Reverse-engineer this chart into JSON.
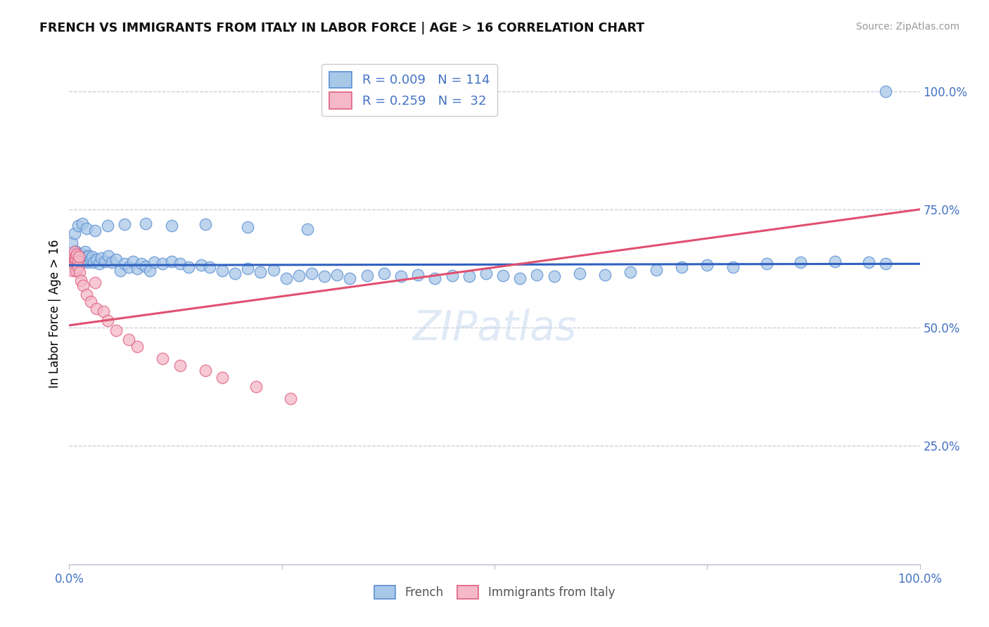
{
  "title": "FRENCH VS IMMIGRANTS FROM ITALY IN LABOR FORCE | AGE > 16 CORRELATION CHART",
  "source": "Source: ZipAtlas.com",
  "ylabel": "In Labor Force | Age > 16",
  "french_color": "#a8c8e8",
  "italy_color": "#f4b8c8",
  "french_edge_color": "#5b8fd4",
  "italy_edge_color": "#e06080",
  "french_line_color": "#3060c0",
  "italy_line_color": "#e05070",
  "watermark": "ZIPatlas",
  "blue_R": 0.009,
  "blue_N": 114,
  "pink_R": 0.259,
  "pink_N": 32,
  "blue_intercept": 0.632,
  "blue_slope": 0.003,
  "pink_intercept": 0.505,
  "pink_slope": 0.245,
  "xlim": [
    0.0,
    1.0
  ],
  "ylim": [
    0.0,
    1.06
  ],
  "blue_x": [
    0.002,
    0.003,
    0.004,
    0.004,
    0.005,
    0.005,
    0.005,
    0.006,
    0.006,
    0.006,
    0.007,
    0.007,
    0.007,
    0.007,
    0.008,
    0.008,
    0.008,
    0.009,
    0.009,
    0.009,
    0.01,
    0.01,
    0.01,
    0.011,
    0.011,
    0.012,
    0.012,
    0.013,
    0.013,
    0.014,
    0.015,
    0.015,
    0.016,
    0.017,
    0.018,
    0.019,
    0.02,
    0.021,
    0.022,
    0.023,
    0.025,
    0.027,
    0.029,
    0.032,
    0.035,
    0.038,
    0.042,
    0.046,
    0.05,
    0.055,
    0.06,
    0.065,
    0.07,
    0.075,
    0.08,
    0.085,
    0.09,
    0.095,
    0.1,
    0.11,
    0.12,
    0.13,
    0.14,
    0.155,
    0.165,
    0.18,
    0.195,
    0.21,
    0.225,
    0.24,
    0.255,
    0.27,
    0.285,
    0.3,
    0.315,
    0.33,
    0.35,
    0.37,
    0.39,
    0.41,
    0.43,
    0.45,
    0.47,
    0.49,
    0.51,
    0.53,
    0.55,
    0.57,
    0.6,
    0.63,
    0.66,
    0.69,
    0.72,
    0.75,
    0.78,
    0.82,
    0.86,
    0.9,
    0.94,
    0.96,
    0.003,
    0.006,
    0.01,
    0.015,
    0.02,
    0.03,
    0.045,
    0.065,
    0.09,
    0.12,
    0.16,
    0.21,
    0.28,
    0.96
  ],
  "blue_y": [
    0.64,
    0.645,
    0.65,
    0.635,
    0.648,
    0.655,
    0.638,
    0.642,
    0.65,
    0.658,
    0.644,
    0.651,
    0.638,
    0.662,
    0.645,
    0.655,
    0.64,
    0.648,
    0.656,
    0.635,
    0.65,
    0.642,
    0.638,
    0.652,
    0.645,
    0.648,
    0.638,
    0.645,
    0.655,
    0.64,
    0.65,
    0.642,
    0.655,
    0.648,
    0.64,
    0.66,
    0.65,
    0.642,
    0.638,
    0.652,
    0.645,
    0.65,
    0.638,
    0.645,
    0.635,
    0.648,
    0.64,
    0.652,
    0.638,
    0.645,
    0.62,
    0.635,
    0.628,
    0.64,
    0.625,
    0.635,
    0.63,
    0.62,
    0.638,
    0.635,
    0.64,
    0.635,
    0.628,
    0.632,
    0.628,
    0.62,
    0.615,
    0.625,
    0.618,
    0.622,
    0.605,
    0.61,
    0.615,
    0.608,
    0.612,
    0.605,
    0.61,
    0.615,
    0.608,
    0.612,
    0.605,
    0.61,
    0.608,
    0.615,
    0.61,
    0.605,
    0.612,
    0.608,
    0.615,
    0.612,
    0.618,
    0.622,
    0.628,
    0.632,
    0.628,
    0.635,
    0.638,
    0.64,
    0.638,
    0.635,
    0.68,
    0.7,
    0.715,
    0.72,
    0.71,
    0.705,
    0.715,
    0.718,
    0.72,
    0.715,
    0.718,
    0.712,
    0.708,
    1.0
  ],
  "pink_x": [
    0.002,
    0.003,
    0.004,
    0.005,
    0.006,
    0.006,
    0.007,
    0.007,
    0.008,
    0.008,
    0.009,
    0.01,
    0.01,
    0.011,
    0.012,
    0.014,
    0.016,
    0.02,
    0.025,
    0.032,
    0.04,
    0.055,
    0.08,
    0.13,
    0.18,
    0.26,
    0.03,
    0.045,
    0.07,
    0.11,
    0.16,
    0.22
  ],
  "pink_y": [
    0.64,
    0.65,
    0.62,
    0.655,
    0.645,
    0.66,
    0.638,
    0.65,
    0.62,
    0.645,
    0.655,
    0.64,
    0.628,
    0.65,
    0.618,
    0.6,
    0.59,
    0.57,
    0.555,
    0.54,
    0.535,
    0.495,
    0.46,
    0.42,
    0.395,
    0.35,
    0.595,
    0.515,
    0.475,
    0.435,
    0.41,
    0.375
  ]
}
